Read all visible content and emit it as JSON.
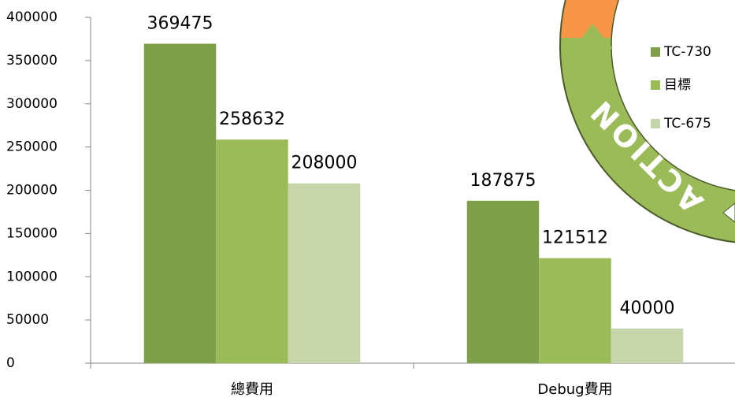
{
  "chart_data": {
    "type": "bar",
    "categories": [
      "總費用",
      "Debug費用"
    ],
    "series": [
      {
        "name": "TC-730",
        "color": "#7f9f4a",
        "values": [
          369475,
          187875
        ]
      },
      {
        "name": "目標",
        "color": "#9bbb59",
        "values": [
          258632,
          121512
        ]
      },
      {
        "name": "TC-675",
        "color": "#c6d6aa",
        "values": [
          208000,
          40000
        ]
      }
    ],
    "ylim": [
      0,
      400000
    ],
    "yticks": [
      0,
      50000,
      100000,
      150000,
      200000,
      250000,
      300000,
      350000,
      400000
    ],
    "grid": false,
    "legend": "right"
  },
  "overlay": {
    "text": "ACTION"
  }
}
